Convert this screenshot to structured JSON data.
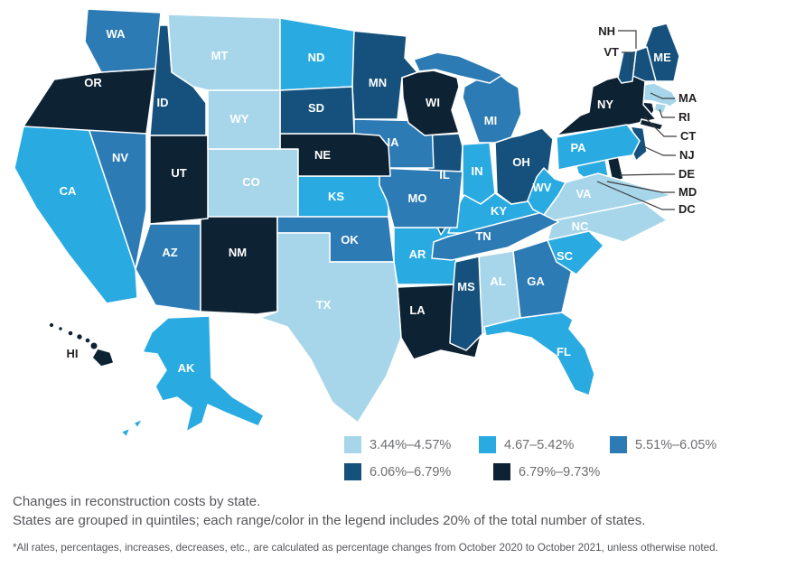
{
  "captions": {
    "line1": "Changes in reconstruction costs by state.",
    "line2": "States are grouped in quintiles; each range/color in the legend includes 20% of the total number of states."
  },
  "footnote": "*All rates, percentages, increases, decreases, etc., are calculated as percentage changes from October 2020 to October 2021, unless otherwise noted.",
  "legend": {
    "items": [
      {
        "label": "3.44%–4.57%",
        "color": "#a7d6eb"
      },
      {
        "label": "4.67–5.42%",
        "color": "#29abe2"
      },
      {
        "label": "5.51%–6.05%",
        "color": "#2c7bb4"
      },
      {
        "label": "6.06%–6.79%",
        "color": "#15517c"
      },
      {
        "label": "6.79%–9.73%",
        "color": "#0d2233"
      }
    ]
  },
  "chart_data": {
    "type": "choropleth",
    "region": "United States",
    "metric": "Change in reconstruction costs, October 2020 to October 2021 (%)",
    "title": "Changes in reconstruction costs by state.",
    "grouping": "quintiles (each range/color includes 20% of states)",
    "legend_position": "bottom",
    "quintile_ranges": [
      "3.44%–4.57%",
      "4.67–5.42%",
      "5.51%–6.05%",
      "6.06%–6.79%",
      "6.79%–9.73%"
    ],
    "states": [
      {
        "code": "AL",
        "name": "Alabama",
        "quintile": 1
      },
      {
        "code": "AK",
        "name": "Alaska",
        "quintile": 2
      },
      {
        "code": "AZ",
        "name": "Arizona",
        "quintile": 3
      },
      {
        "code": "AR",
        "name": "Arkansas",
        "quintile": 2
      },
      {
        "code": "CA",
        "name": "California",
        "quintile": 2
      },
      {
        "code": "CO",
        "name": "Colorado",
        "quintile": 1
      },
      {
        "code": "CT",
        "name": "Connecticut",
        "quintile": 5
      },
      {
        "code": "DE",
        "name": "Delaware",
        "quintile": 5
      },
      {
        "code": "DC",
        "name": "District of Columbia",
        "quintile": 3
      },
      {
        "code": "FL",
        "name": "Florida",
        "quintile": 2
      },
      {
        "code": "GA",
        "name": "Georgia",
        "quintile": 3
      },
      {
        "code": "HI",
        "name": "Hawaii",
        "quintile": 5
      },
      {
        "code": "ID",
        "name": "Idaho",
        "quintile": 4
      },
      {
        "code": "IL",
        "name": "Illinois",
        "quintile": 4
      },
      {
        "code": "IN",
        "name": "Indiana",
        "quintile": 2
      },
      {
        "code": "IA",
        "name": "Iowa",
        "quintile": 3
      },
      {
        "code": "KS",
        "name": "Kansas",
        "quintile": 2
      },
      {
        "code": "KY",
        "name": "Kentucky",
        "quintile": 2
      },
      {
        "code": "LA",
        "name": "Louisiana",
        "quintile": 5
      },
      {
        "code": "ME",
        "name": "Maine",
        "quintile": 4
      },
      {
        "code": "MD",
        "name": "Maryland",
        "quintile": 2
      },
      {
        "code": "MA",
        "name": "Massachusetts",
        "quintile": 1
      },
      {
        "code": "MI",
        "name": "Michigan",
        "quintile": 3
      },
      {
        "code": "MN",
        "name": "Minnesota",
        "quintile": 4
      },
      {
        "code": "MS",
        "name": "Mississippi",
        "quintile": 4
      },
      {
        "code": "MO",
        "name": "Missouri",
        "quintile": 3
      },
      {
        "code": "MT",
        "name": "Montana",
        "quintile": 1
      },
      {
        "code": "NE",
        "name": "Nebraska",
        "quintile": 5
      },
      {
        "code": "NV",
        "name": "Nevada",
        "quintile": 3
      },
      {
        "code": "NH",
        "name": "New Hampshire",
        "quintile": 4
      },
      {
        "code": "NJ",
        "name": "New Jersey",
        "quintile": 4
      },
      {
        "code": "NM",
        "name": "New Mexico",
        "quintile": 5
      },
      {
        "code": "NY",
        "name": "New York",
        "quintile": 5
      },
      {
        "code": "NC",
        "name": "North Carolina",
        "quintile": 1
      },
      {
        "code": "ND",
        "name": "North Dakota",
        "quintile": 2
      },
      {
        "code": "OH",
        "name": "Ohio",
        "quintile": 4
      },
      {
        "code": "OK",
        "name": "Oklahoma",
        "quintile": 3
      },
      {
        "code": "OR",
        "name": "Oregon",
        "quintile": 5
      },
      {
        "code": "PA",
        "name": "Pennsylvania",
        "quintile": 2
      },
      {
        "code": "RI",
        "name": "Rhode Island",
        "quintile": 1
      },
      {
        "code": "SC",
        "name": "South Carolina",
        "quintile": 2
      },
      {
        "code": "SD",
        "name": "South Dakota",
        "quintile": 4
      },
      {
        "code": "TN",
        "name": "Tennessee",
        "quintile": 3
      },
      {
        "code": "TX",
        "name": "Texas",
        "quintile": 1
      },
      {
        "code": "UT",
        "name": "Utah",
        "quintile": 5
      },
      {
        "code": "VT",
        "name": "Vermont",
        "quintile": 4
      },
      {
        "code": "VA",
        "name": "Virginia",
        "quintile": 1
      },
      {
        "code": "WA",
        "name": "Washington",
        "quintile": 3
      },
      {
        "code": "WV",
        "name": "West Virginia",
        "quintile": 2
      },
      {
        "code": "WI",
        "name": "Wisconsin",
        "quintile": 5
      },
      {
        "code": "WY",
        "name": "Wyoming",
        "quintile": 1
      }
    ]
  }
}
